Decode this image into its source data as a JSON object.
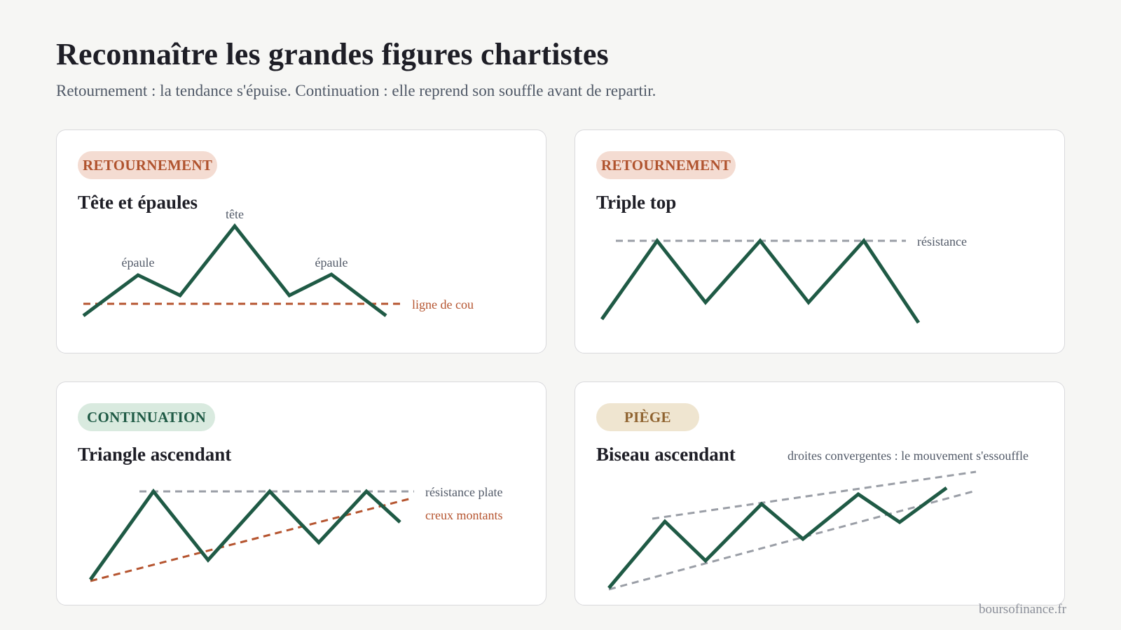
{
  "header": {
    "title": "Reconnaître les grandes figures chartistes",
    "subtitle": "Retournement : la tendance s'épuise. Continuation : elle reprend son souffle avant de repartir."
  },
  "cards": [
    {
      "badge": "RETOURNEMENT",
      "title": "Tête et épaules",
      "labels": {
        "left_shoulder": "épaule",
        "head": "tête",
        "right_shoulder": "épaule",
        "neckline": "ligne de cou"
      }
    },
    {
      "badge": "RETOURNEMENT",
      "title": "Triple top",
      "labels": {
        "resistance": "résistance"
      }
    },
    {
      "badge": "CONTINUATION",
      "title": "Triangle ascendant",
      "labels": {
        "flat_resistance": "résistance plate",
        "rising_lows": "creux montants"
      }
    },
    {
      "badge": "PIÈGE",
      "title": "Biseau ascendant",
      "labels": {
        "converging": "droites convergentes : le mouvement s'essouffle"
      }
    }
  ],
  "footer": {
    "source": "boursofinance.fr"
  },
  "colors": {
    "price_line": "#1f5a45",
    "neckline": "#b5542f",
    "guide": "#9a9ea6",
    "reversal_badge": "#f4dcd2",
    "continuation_badge": "#d9eadf",
    "trap_badge": "#efe5d0"
  }
}
